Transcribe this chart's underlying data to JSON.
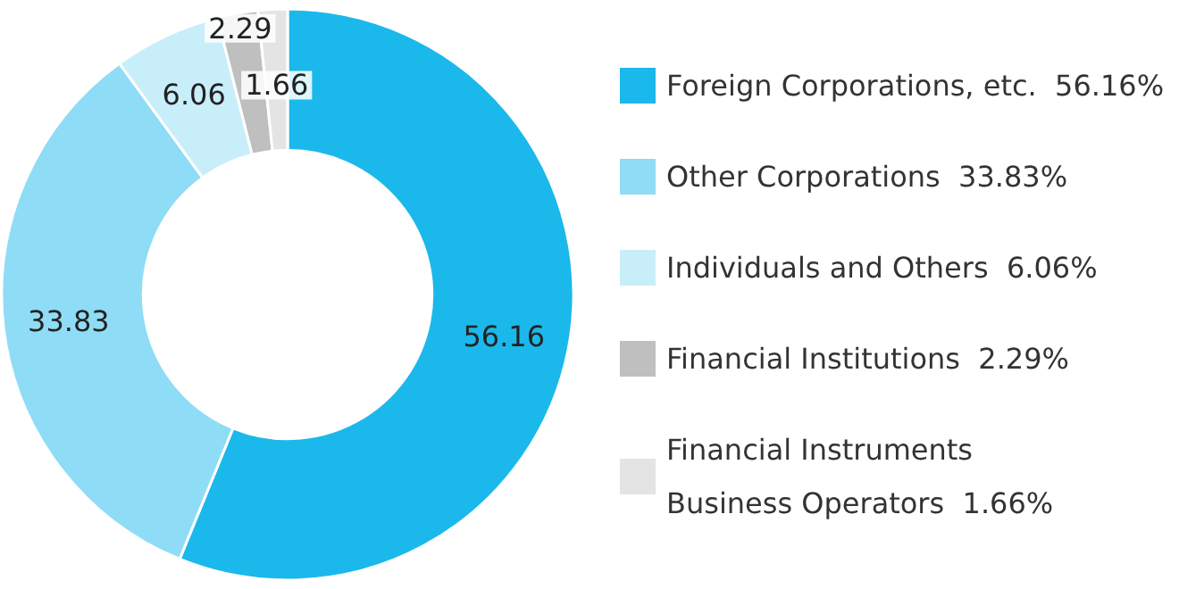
{
  "chart_data": {
    "type": "donut",
    "categories": [
      "Foreign Corporations, etc.  56.16%",
      "Other Corporations  33.83%",
      "Individuals and Others  6.06%",
      "Financial Institutions  2.29%",
      "Financial Instruments\nBusiness Operators  1.66%"
    ],
    "values": [
      56.16,
      33.83,
      6.06,
      2.29,
      1.66
    ],
    "colors": [
      "#1bb8eb",
      "#8fdcf6",
      "#c8eefa",
      "#bfbfbf",
      "#e4e4e4"
    ],
    "data_labels": true,
    "legend": "right"
  }
}
